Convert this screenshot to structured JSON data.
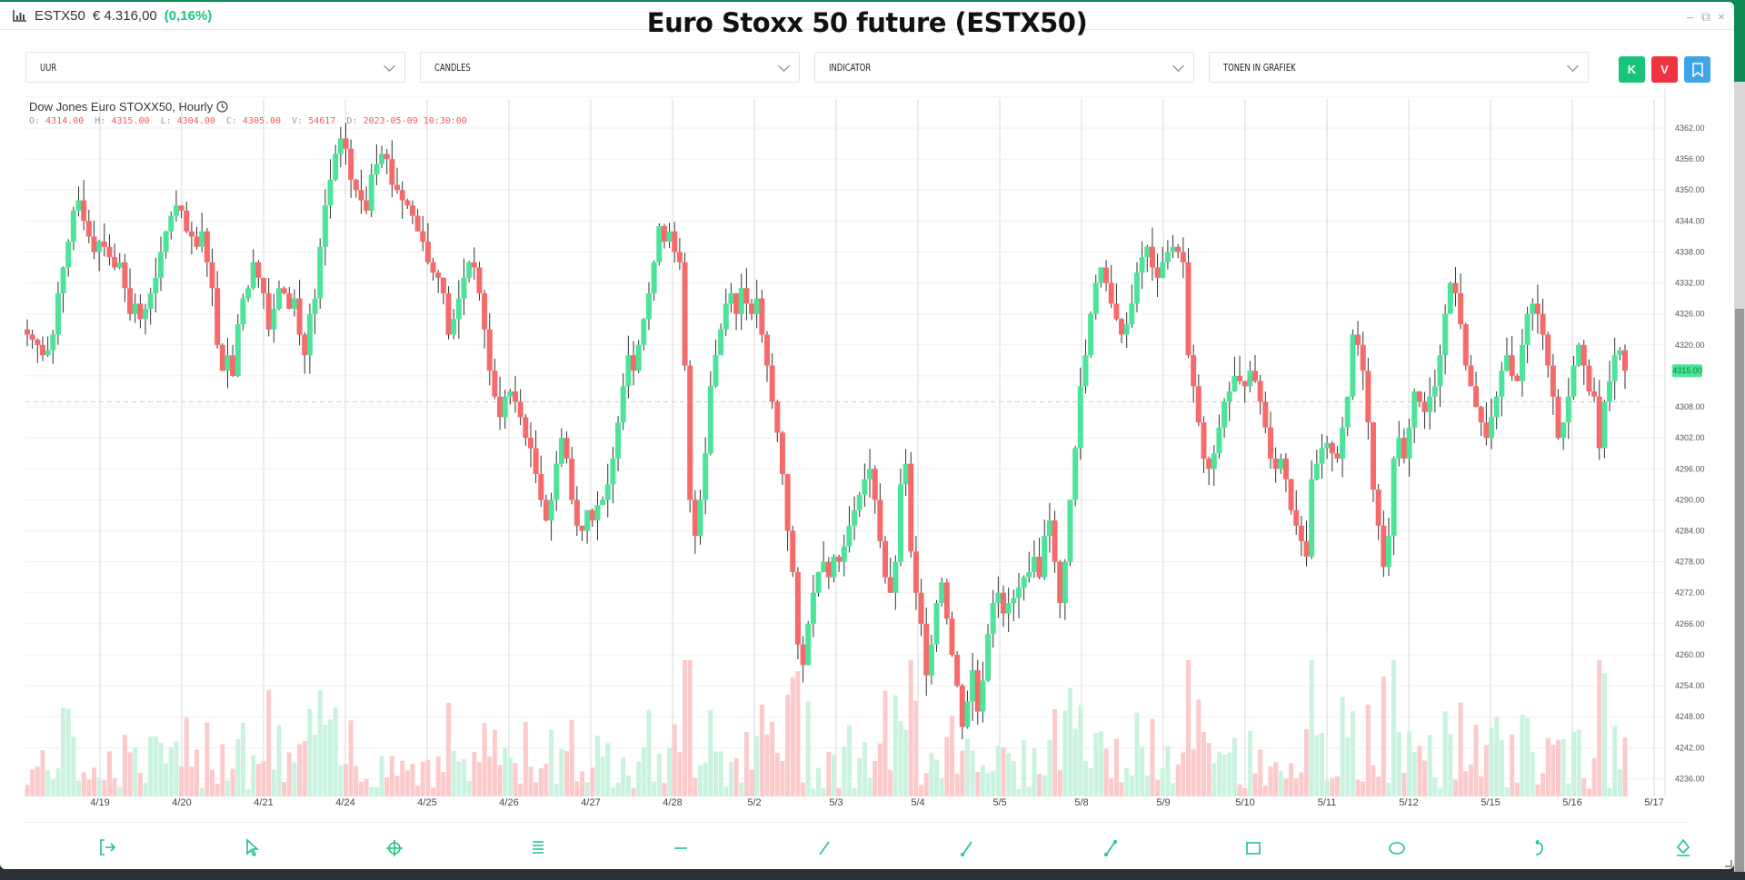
{
  "window": {
    "ticker_symbol": "ESTX50",
    "ticker_price": "€ 4.316,00",
    "ticker_change": "(0,16%)",
    "title": "Euro Stoxx 50 future (ESTX50)",
    "controls": {
      "minimize": "–",
      "restore": "⧉",
      "close": "×"
    }
  },
  "toolbar": {
    "interval": "UUR",
    "chart_type": "CANDLES",
    "indicator": "INDICATOR",
    "show_in_chart": "TONEN IN GRAFIEK",
    "buy_label": "K",
    "sell_label": "V",
    "colors": {
      "buy": "#19c47a",
      "sell": "#f0333f",
      "bookmark": "#3ea6e6"
    }
  },
  "chart_header": {
    "name": "Dow Jones Euro STOXX50, Hourly",
    "o_label": "O:",
    "o": "4314.00",
    "h_label": "H:",
    "h": "4315.00",
    "l_label": "L:",
    "l": "4304.00",
    "c_label": "C:",
    "c": "4305.00",
    "v_label": "V:",
    "v": "54617",
    "d_label": "D:",
    "d": "2023-05-09 10:30:00"
  },
  "bottom_tools": [
    {
      "name": "exit-icon"
    },
    {
      "name": "pointer-icon"
    },
    {
      "name": "crosshair-icon"
    },
    {
      "name": "fibonacci-icon"
    },
    {
      "name": "horizontal-line-icon"
    },
    {
      "name": "trend-line-icon"
    },
    {
      "name": "ray-icon"
    },
    {
      "name": "segment-icon"
    },
    {
      "name": "rectangle-icon"
    },
    {
      "name": "ellipse-icon"
    },
    {
      "name": "undo-icon"
    },
    {
      "name": "eraser-icon"
    }
  ],
  "chart_data": {
    "type": "candlestick",
    "title": "Dow Jones Euro STOXX50, Hourly",
    "xlabel": "",
    "ylabel": "",
    "ylim": [
      4236,
      4364
    ],
    "y_ticks": [
      "4362.00",
      "4356.00",
      "4350.00",
      "4344.00",
      "4338.00",
      "4332.00",
      "4326.00",
      "4320.00",
      "4308.00",
      "4302.00",
      "4296.00",
      "4290.00",
      "4284.00",
      "4278.00",
      "4272.00",
      "4266.00",
      "4260.00",
      "4254.00",
      "4248.00",
      "4242.00",
      "4236.00"
    ],
    "x_ticks": [
      "4/19",
      "4/20",
      "4/21",
      "4/24",
      "4/25",
      "4/26",
      "4/27",
      "4/28",
      "5/2",
      "5/3",
      "5/4",
      "5/5",
      "5/8",
      "5/9",
      "5/10",
      "5/11",
      "5/12",
      "5/15",
      "5/16",
      "5/17"
    ],
    "last_price": "4315.00",
    "dashed_level": 4309,
    "colors": {
      "up": "#4ee39a",
      "down": "#f66a6a",
      "vol_up": "#c9f3de",
      "vol_down": "#fccaca"
    },
    "grid": true,
    "closes": [
      4322,
      4321,
      4320,
      4318,
      4319,
      4322,
      4330,
      4335,
      4340,
      4346,
      4348,
      4344,
      4341,
      4338,
      4340,
      4339,
      4337,
      4335,
      4336,
      4331,
      4326,
      4328,
      4325,
      4327,
      4330,
      4333,
      4338,
      4342,
      4345,
      4347,
      4346,
      4342,
      4341,
      4339,
      4342,
      4336,
      4331,
      4320,
      4315,
      4318,
      4314,
      4324,
      4329,
      4331,
      4336,
      4333,
      4330,
      4323,
      4327,
      4331,
      4330,
      4327,
      4329,
      4322,
      4318,
      4326,
      4329,
      4339,
      4347,
      4352,
      4357,
      4360,
      4358,
      4352,
      4350,
      4348,
      4346,
      4353,
      4355,
      4357,
      4356,
      4351,
      4350,
      4348,
      4347,
      4345,
      4342,
      4340,
      4336,
      4334,
      4333,
      4330,
      4322,
      4325,
      4329,
      4333,
      4336,
      4335,
      4330,
      4323,
      4315,
      4310,
      4306,
      4310,
      4311,
      4309,
      4306,
      4302,
      4300,
      4295,
      4290,
      4286,
      4290,
      4297,
      4302,
      4298,
      4290,
      4285,
      4284,
      4288,
      4286,
      4289,
      4290,
      4293,
      4298,
      4305,
      4312,
      4318,
      4315,
      4320,
      4325,
      4330,
      4336,
      4343,
      4340,
      4342,
      4338,
      4336,
      4316,
      4290,
      4283,
      4290,
      4299,
      4312,
      4318,
      4323,
      4328,
      4330,
      4326,
      4331,
      4328,
      4326,
      4329,
      4322,
      4316,
      4309,
      4303,
      4295,
      4284,
      4276,
      4262,
      4258,
      4266,
      4272,
      4276,
      4278,
      4275,
      4279,
      4278,
      4281,
      4285,
      4288,
      4291,
      4294,
      4296,
      4290,
      4282,
      4275,
      4272,
      4278,
      4293,
      4297,
      4280,
      4272,
      4266,
      4256,
      4262,
      4270,
      4274,
      4267,
      4260,
      4254,
      4246,
      4251,
      4257,
      4249,
      4255,
      4264,
      4270,
      4272,
      4268,
      4270,
      4271,
      4273,
      4275,
      4276,
      4279,
      4275,
      4283,
      4286,
      4278,
      4270,
      4278,
      4290,
      4300,
      4312,
      4318,
      4326,
      4332,
      4335,
      4332,
      4328,
      4325,
      4322,
      4324,
      4328,
      4334,
      4337,
      4339,
      4335,
      4333,
      4336,
      4338,
      4339,
      4338,
      4336,
      4318,
      4312,
      4305,
      4298,
      4296,
      4299,
      4304,
      4309,
      4311,
      4314,
      4313,
      4312,
      4315,
      4313,
      4309,
      4304,
      4298,
      4296,
      4298,
      4294,
      4288,
      4285,
      4282,
      4279,
      4294,
      4297,
      4300,
      4301,
      4299,
      4298,
      4304,
      4310,
      4322,
      4320,
      4315,
      4305,
      4292,
      4285,
      4277,
      4283,
      4298,
      4302,
      4298,
      4304,
      4311,
      4309,
      4307,
      4310,
      4312,
      4318,
      4326,
      4332,
      4330,
      4324,
      4316,
      4312,
      4308,
      4305,
      4302,
      4306,
      4310,
      4315,
      4318,
      4314,
      4313,
      4320,
      4326,
      4328,
      4326,
      4322,
      4316,
      4310,
      4302,
      4305,
      4310,
      4316,
      4320,
      4316,
      4311,
      4310,
      4300,
      4309,
      4313,
      4318,
      4319,
      4315
    ]
  }
}
